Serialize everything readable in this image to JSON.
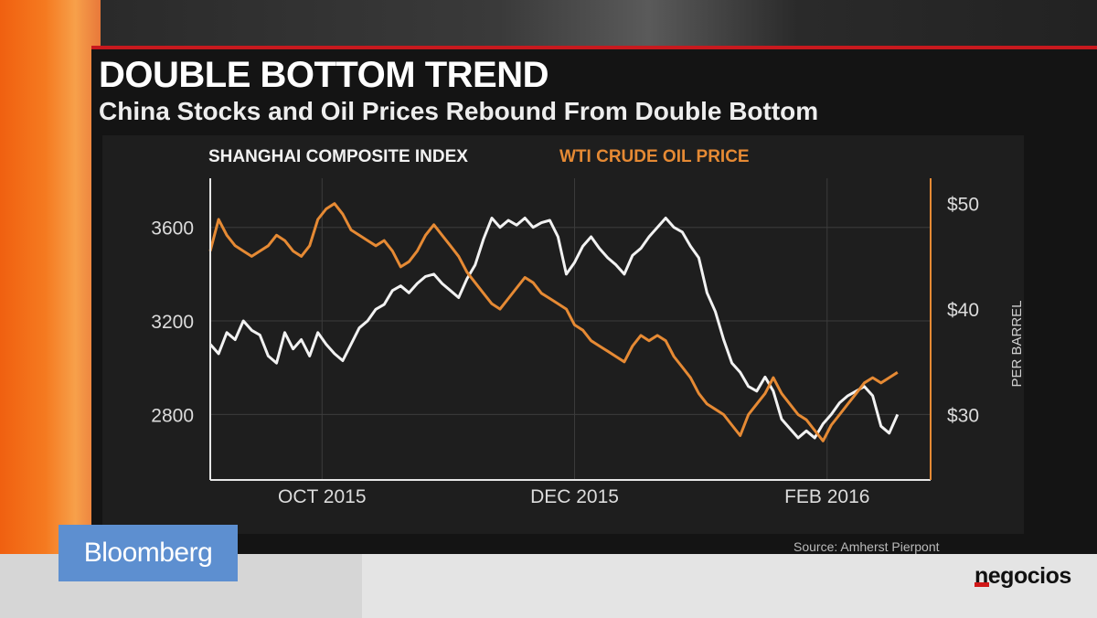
{
  "header": {
    "title": "DOUBLE BOTTOM TREND",
    "subtitle": "China Stocks and Oil Prices Rebound From Double Bottom"
  },
  "footer": {
    "source": "Source: Amherst Pierpont",
    "broadcaster": "Bloomberg",
    "outlet": "negocios"
  },
  "colors": {
    "accent_red": "#c8191e",
    "shanghai_series": "#f2f2f2",
    "oil_series": "#e68a34",
    "bloomberg_blue": "#5d8fd0"
  },
  "chart_data": {
    "type": "line",
    "x_tick_labels": [
      "OCT 2015",
      "DEC 2015",
      "FEB 2016"
    ],
    "x_ticks": [
      27,
      88,
      149
    ],
    "x_range": [
      0,
      174
    ],
    "left_axis": {
      "ticks": [
        2800,
        3200,
        3600
      ],
      "tick_labels": [
        "2800",
        "3200",
        "3600"
      ],
      "range": [
        2520,
        3810
      ]
    },
    "right_axis": {
      "ticks": [
        30,
        40,
        50
      ],
      "tick_labels": [
        "$30",
        "$40",
        "$50"
      ],
      "label": "PER BARREL",
      "range": [
        23.8,
        52.4
      ]
    },
    "series": [
      {
        "name": "SHANGHAI COMPOSITE INDEX",
        "axis": "left",
        "color": "#f2f2f2",
        "points": [
          [
            0,
            3100
          ],
          [
            2,
            3060
          ],
          [
            4,
            3150
          ],
          [
            6,
            3120
          ],
          [
            8,
            3200
          ],
          [
            10,
            3160
          ],
          [
            12,
            3140
          ],
          [
            14,
            3050
          ],
          [
            16,
            3020
          ],
          [
            18,
            3150
          ],
          [
            20,
            3080
          ],
          [
            22,
            3120
          ],
          [
            24,
            3050
          ],
          [
            26,
            3150
          ],
          [
            28,
            3100
          ],
          [
            30,
            3060
          ],
          [
            32,
            3030
          ],
          [
            34,
            3100
          ],
          [
            36,
            3170
          ],
          [
            38,
            3200
          ],
          [
            40,
            3250
          ],
          [
            42,
            3270
          ],
          [
            44,
            3330
          ],
          [
            46,
            3350
          ],
          [
            48,
            3320
          ],
          [
            50,
            3360
          ],
          [
            52,
            3390
          ],
          [
            54,
            3400
          ],
          [
            56,
            3360
          ],
          [
            58,
            3330
          ],
          [
            60,
            3300
          ],
          [
            62,
            3380
          ],
          [
            64,
            3440
          ],
          [
            66,
            3550
          ],
          [
            68,
            3640
          ],
          [
            70,
            3600
          ],
          [
            72,
            3630
          ],
          [
            74,
            3610
          ],
          [
            76,
            3640
          ],
          [
            78,
            3600
          ],
          [
            80,
            3620
          ],
          [
            82,
            3630
          ],
          [
            84,
            3560
          ],
          [
            86,
            3400
          ],
          [
            88,
            3450
          ],
          [
            90,
            3520
          ],
          [
            92,
            3560
          ],
          [
            94,
            3510
          ],
          [
            96,
            3470
          ],
          [
            98,
            3440
          ],
          [
            100,
            3400
          ],
          [
            102,
            3480
          ],
          [
            104,
            3510
          ],
          [
            106,
            3560
          ],
          [
            108,
            3600
          ],
          [
            110,
            3640
          ],
          [
            112,
            3600
          ],
          [
            114,
            3580
          ],
          [
            116,
            3520
          ],
          [
            118,
            3470
          ],
          [
            120,
            3320
          ],
          [
            122,
            3240
          ],
          [
            124,
            3120
          ],
          [
            126,
            3020
          ],
          [
            128,
            2980
          ],
          [
            130,
            2920
          ],
          [
            132,
            2900
          ],
          [
            134,
            2960
          ],
          [
            136,
            2900
          ],
          [
            138,
            2780
          ],
          [
            140,
            2740
          ],
          [
            142,
            2700
          ],
          [
            144,
            2730
          ],
          [
            146,
            2700
          ],
          [
            148,
            2760
          ],
          [
            150,
            2800
          ],
          [
            152,
            2850
          ],
          [
            154,
            2880
          ],
          [
            156,
            2900
          ],
          [
            158,
            2920
          ],
          [
            160,
            2880
          ],
          [
            162,
            2750
          ],
          [
            164,
            2720
          ],
          [
            166,
            2800
          ]
        ]
      },
      {
        "name": "WTI CRUDE OIL PRICE",
        "axis": "right",
        "color": "#e68a34",
        "points": [
          [
            0,
            45.5
          ],
          [
            2,
            48.5
          ],
          [
            4,
            47
          ],
          [
            6,
            46
          ],
          [
            8,
            45.5
          ],
          [
            10,
            45
          ],
          [
            12,
            45.5
          ],
          [
            14,
            46
          ],
          [
            16,
            47
          ],
          [
            18,
            46.5
          ],
          [
            20,
            45.5
          ],
          [
            22,
            45
          ],
          [
            24,
            46
          ],
          [
            26,
            48.5
          ],
          [
            28,
            49.5
          ],
          [
            30,
            50
          ],
          [
            32,
            49
          ],
          [
            34,
            47.5
          ],
          [
            36,
            47
          ],
          [
            38,
            46.5
          ],
          [
            40,
            46
          ],
          [
            42,
            46.5
          ],
          [
            44,
            45.5
          ],
          [
            46,
            44
          ],
          [
            48,
            44.5
          ],
          [
            50,
            45.5
          ],
          [
            52,
            47
          ],
          [
            54,
            48
          ],
          [
            56,
            47
          ],
          [
            58,
            46
          ],
          [
            60,
            45
          ],
          [
            62,
            43.5
          ],
          [
            64,
            42.5
          ],
          [
            66,
            41.5
          ],
          [
            68,
            40.5
          ],
          [
            70,
            40
          ],
          [
            72,
            41
          ],
          [
            74,
            42
          ],
          [
            76,
            43
          ],
          [
            78,
            42.5
          ],
          [
            80,
            41.5
          ],
          [
            82,
            41
          ],
          [
            84,
            40.5
          ],
          [
            86,
            40
          ],
          [
            88,
            38.5
          ],
          [
            90,
            38
          ],
          [
            92,
            37
          ],
          [
            94,
            36.5
          ],
          [
            96,
            36
          ],
          [
            98,
            35.5
          ],
          [
            100,
            35
          ],
          [
            102,
            36.5
          ],
          [
            104,
            37.5
          ],
          [
            106,
            37
          ],
          [
            108,
            37.5
          ],
          [
            110,
            37
          ],
          [
            112,
            35.5
          ],
          [
            114,
            34.5
          ],
          [
            116,
            33.5
          ],
          [
            118,
            32
          ],
          [
            120,
            31
          ],
          [
            122,
            30.5
          ],
          [
            124,
            30
          ],
          [
            126,
            29
          ],
          [
            128,
            28
          ],
          [
            130,
            30
          ],
          [
            132,
            31
          ],
          [
            134,
            32
          ],
          [
            136,
            33.5
          ],
          [
            138,
            32
          ],
          [
            140,
            31
          ],
          [
            142,
            30
          ],
          [
            144,
            29.5
          ],
          [
            146,
            28.5
          ],
          [
            148,
            27.5
          ],
          [
            150,
            29
          ],
          [
            152,
            30
          ],
          [
            154,
            31
          ],
          [
            156,
            32
          ],
          [
            158,
            33
          ],
          [
            160,
            33.5
          ],
          [
            162,
            33
          ],
          [
            164,
            33.5
          ],
          [
            166,
            34
          ]
        ]
      }
    ]
  }
}
